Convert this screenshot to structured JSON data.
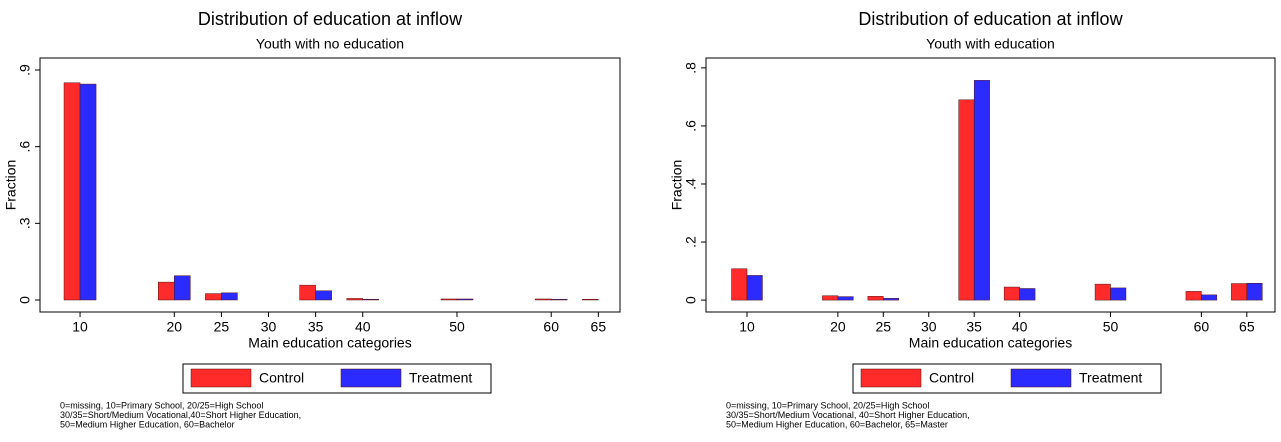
{
  "chart_data": [
    {
      "type": "bar",
      "title": "Distribution of education at inflow",
      "subtitle": "Youth with no education",
      "x_label": "Main education categories",
      "y_label": "Fraction",
      "x": [
        10,
        20,
        25,
        35,
        40,
        50,
        60,
        65
      ],
      "series": [
        {
          "name": "Control",
          "color": "#ff2a2a",
          "values": [
            0.85,
            0.07,
            0.025,
            0.058,
            0.006,
            0.004,
            0.004,
            0.003
          ]
        },
        {
          "name": "Treatment",
          "color": "#2b2bff",
          "values": [
            0.845,
            0.095,
            0.028,
            0.036,
            0.003,
            0.004,
            0.003,
            0
          ]
        }
      ],
      "xlim": [
        5.75,
        67.3
      ],
      "xticks": [
        10,
        20,
        25,
        30,
        35,
        40,
        50,
        60,
        65
      ],
      "ylim": [
        -0.047,
        0.947
      ],
      "yticks": [
        0,
        {
          "value": 0.3,
          "label": ".3"
        },
        {
          "value": 0.6,
          "label": ".6"
        },
        {
          "value": 0.9,
          "label": ".9"
        }
      ],
      "notes": [
        "0=missing, 10=Primary School, 20/25=High School",
        "30/35=Short/Medium Vocational,40=Short Higher Education,",
        "50=Medium Higher Education, 60=Bachelor"
      ]
    },
    {
      "type": "bar",
      "title": "Distribution of education at inflow",
      "subtitle": "Youth with education",
      "x_label": "Main education categories",
      "y_label": "Fraction",
      "x": [
        10,
        20,
        25,
        35,
        40,
        50,
        60,
        65
      ],
      "series": [
        {
          "name": "Control",
          "color": "#ff2a2a",
          "values": [
            0.108,
            0.015,
            0.013,
            0.69,
            0.045,
            0.055,
            0.03,
            0.057
          ]
        },
        {
          "name": "Treatment",
          "color": "#2b2bff",
          "values": [
            0.085,
            0.012,
            0.006,
            0.757,
            0.04,
            0.042,
            0.018,
            0.058
          ]
        }
      ],
      "xlim": [
        5.49,
        68.1
      ],
      "xticks": [
        10,
        20,
        25,
        30,
        35,
        40,
        50,
        60,
        65
      ],
      "ylim": [
        -0.041,
        0.834
      ],
      "yticks": [
        0,
        {
          "value": 0.2,
          "label": ".2"
        },
        {
          "value": 0.4,
          "label": ".4"
        },
        {
          "value": 0.6,
          "label": ".6"
        },
        {
          "value": 0.8,
          "label": ".8"
        }
      ],
      "notes": [
        "0=missing, 10=Primary School, 20/25=High School",
        "30/35=Short/Medium Vocational, 40=Short Higher Education,",
        "50=Medium Higher Education, 60=Bachelor, 65=Master"
      ]
    }
  ]
}
